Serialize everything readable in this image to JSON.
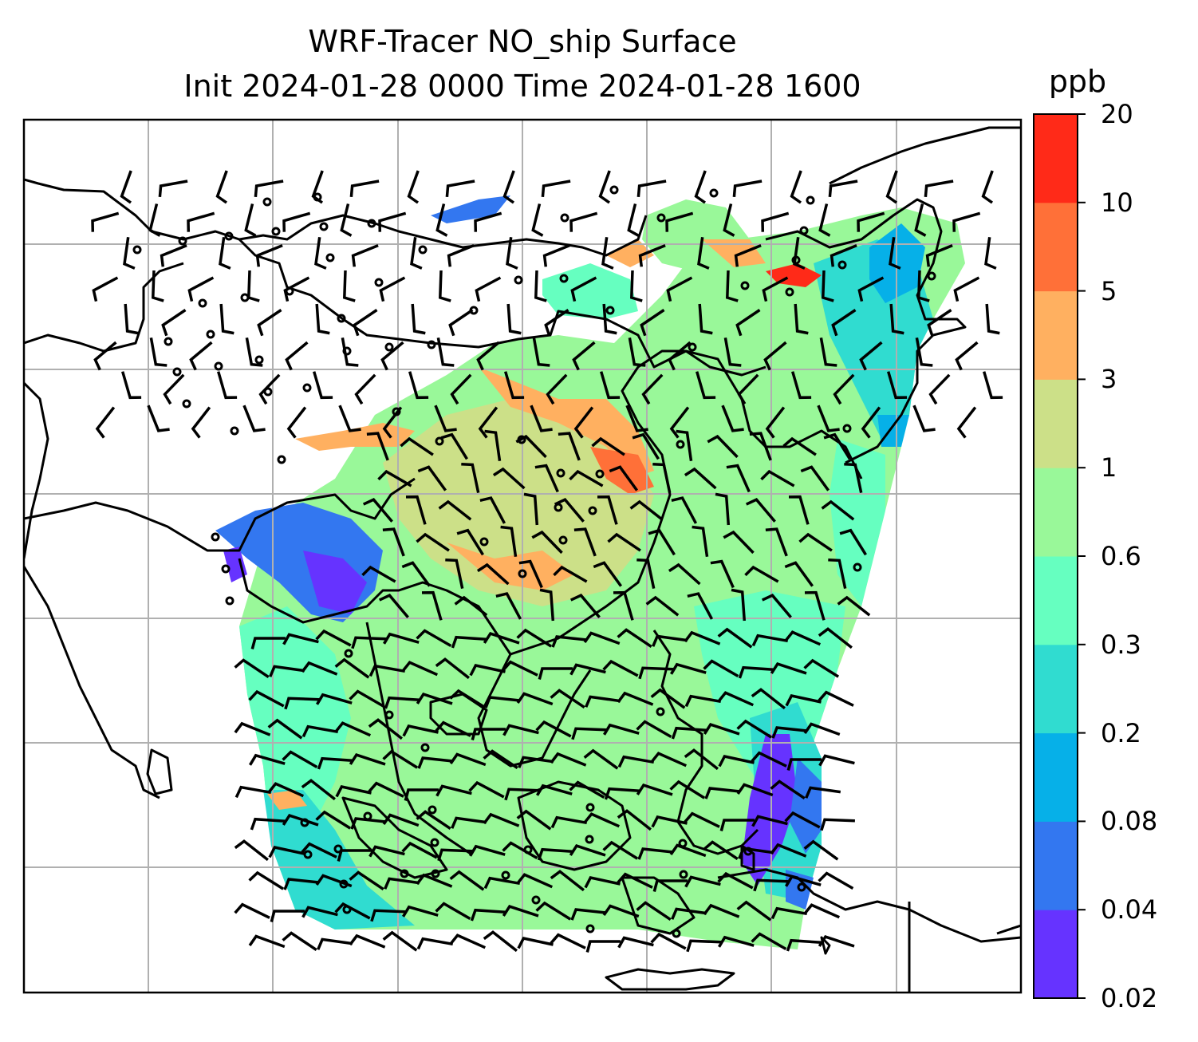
{
  "title_line1": "WRF-Tracer NO_ship Surface",
  "title_line2": "Init 2024-01-28 0000 Time 2024-01-28 1600",
  "colorbar": {
    "unit": "ppb",
    "levels": [
      "0.02",
      "0.04",
      "0.08",
      "0.2",
      "0.3",
      "0.6",
      "1",
      "3",
      "5",
      "10",
      "20"
    ],
    "colors": [
      "#6633ff",
      "#3377f0",
      "#06b0e8",
      "#30dcd0",
      "#66ffc0",
      "#99f899",
      "#cce088",
      "#ffb060",
      "#ff7038",
      "#ff2a18"
    ]
  },
  "map": {
    "overlay": "wind barbs",
    "calm_marker": "circle",
    "gridlines": true
  }
}
